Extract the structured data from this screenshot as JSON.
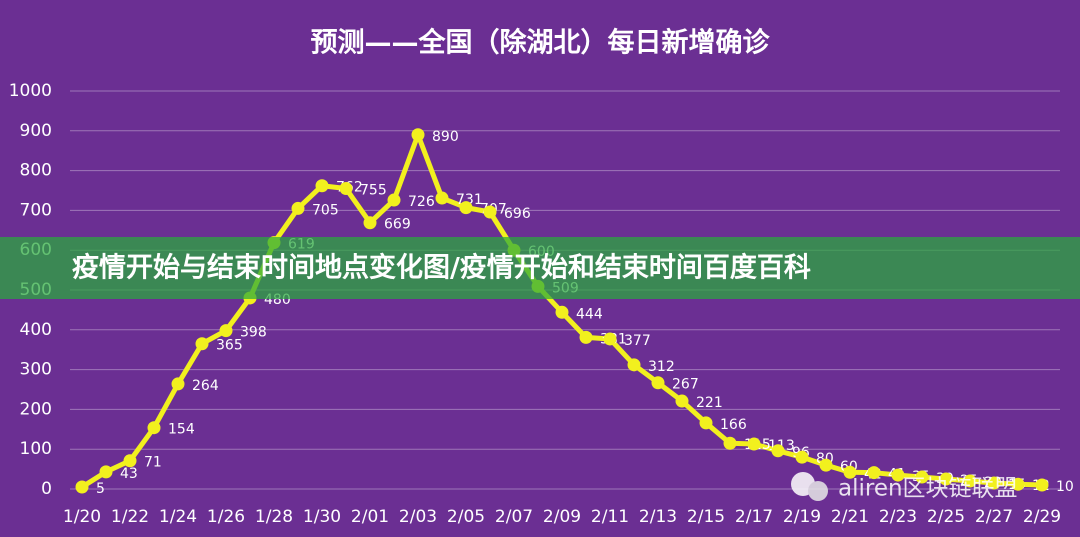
{
  "chart_data": {
    "type": "line",
    "title": "预测——全国（除湖北）每日新增确诊",
    "categories": [
      "1/20",
      null,
      "1/22",
      null,
      "1/24",
      null,
      "1/26",
      null,
      "1/28",
      null,
      "1/30",
      null,
      "2/01",
      null,
      "2/03",
      null,
      "2/05",
      null,
      "2/07",
      null,
      "2/09",
      null,
      "2/11",
      null,
      "2/13",
      null,
      "2/15",
      null,
      "2/17",
      null,
      "2/19",
      null,
      "2/21",
      null,
      "2/23",
      null,
      "2/25",
      null,
      "2/27",
      null,
      "2/29"
    ],
    "values": [
      5,
      43,
      71,
      154,
      264,
      365,
      398,
      480,
      619,
      705,
      762,
      755,
      669,
      726,
      890,
      731,
      707,
      696,
      600,
      509,
      444,
      381,
      377,
      312,
      267,
      221,
      166,
      115,
      113,
      96,
      80,
      60,
      42,
      41,
      35,
      30,
      25,
      20,
      15,
      12,
      10
    ],
    "color": "#f2f01e",
    "ylim": [
      0,
      1000
    ],
    "yticks": [
      0,
      100,
      200,
      300,
      400,
      500,
      600,
      700,
      800,
      900,
      1000
    ],
    "grid": true
  },
  "banner": {
    "text": "疫情开始与结束时间地点变化图/疫情开始和结束时间百度百科"
  },
  "watermark": {
    "text": "aliren区块链联盟"
  }
}
